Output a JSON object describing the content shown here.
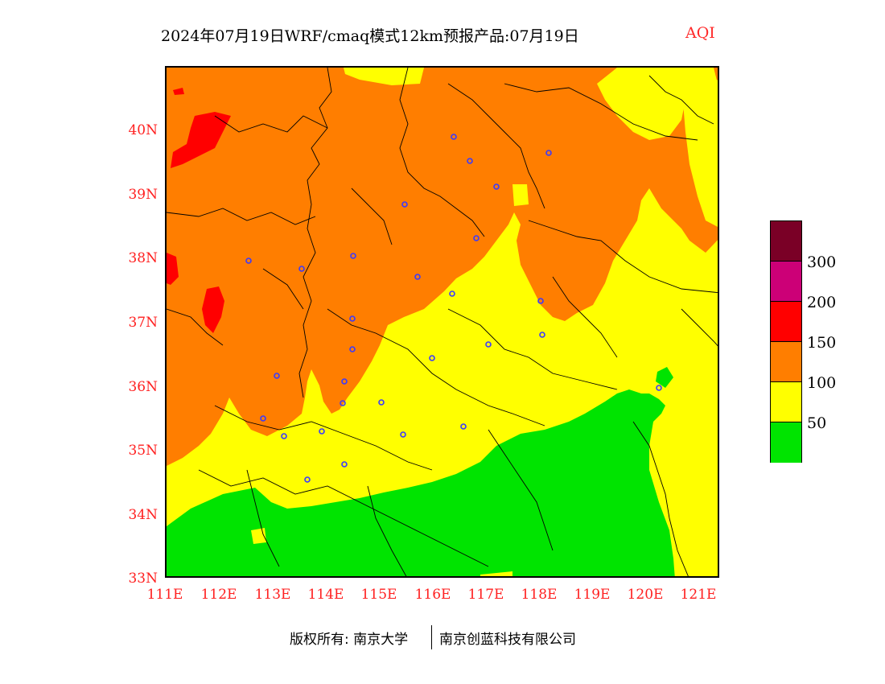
{
  "title": {
    "main": "2024年07月19日WRF/cmaq模式12km预报产品:07月19日",
    "variable": "AQI"
  },
  "map": {
    "y_ticks": [
      "40N",
      "39N",
      "38N",
      "37N",
      "36N",
      "35N",
      "34N",
      "33N"
    ],
    "x_ticks": [
      "111E",
      "112E",
      "113E",
      "114E",
      "115E",
      "116E",
      "117E",
      "118E",
      "119E",
      "120E",
      "121E"
    ],
    "lat_range": [
      33,
      41
    ],
    "lon_range": [
      111,
      121.4
    ]
  },
  "legend": {
    "labels": [
      "300",
      "200",
      "150",
      "100",
      "50"
    ],
    "colors": {
      "level_300_plus": "#7a0026",
      "level_200_300": "#cc0077",
      "level_150_200": "#ff0000",
      "level_100_150": "#ff7e00",
      "level_50_100": "#ffff00",
      "level_0_50": "#00e400"
    }
  },
  "footer": {
    "copyright": "版权所有: 南京大学",
    "company": "南京创蓝科技有限公司"
  }
}
